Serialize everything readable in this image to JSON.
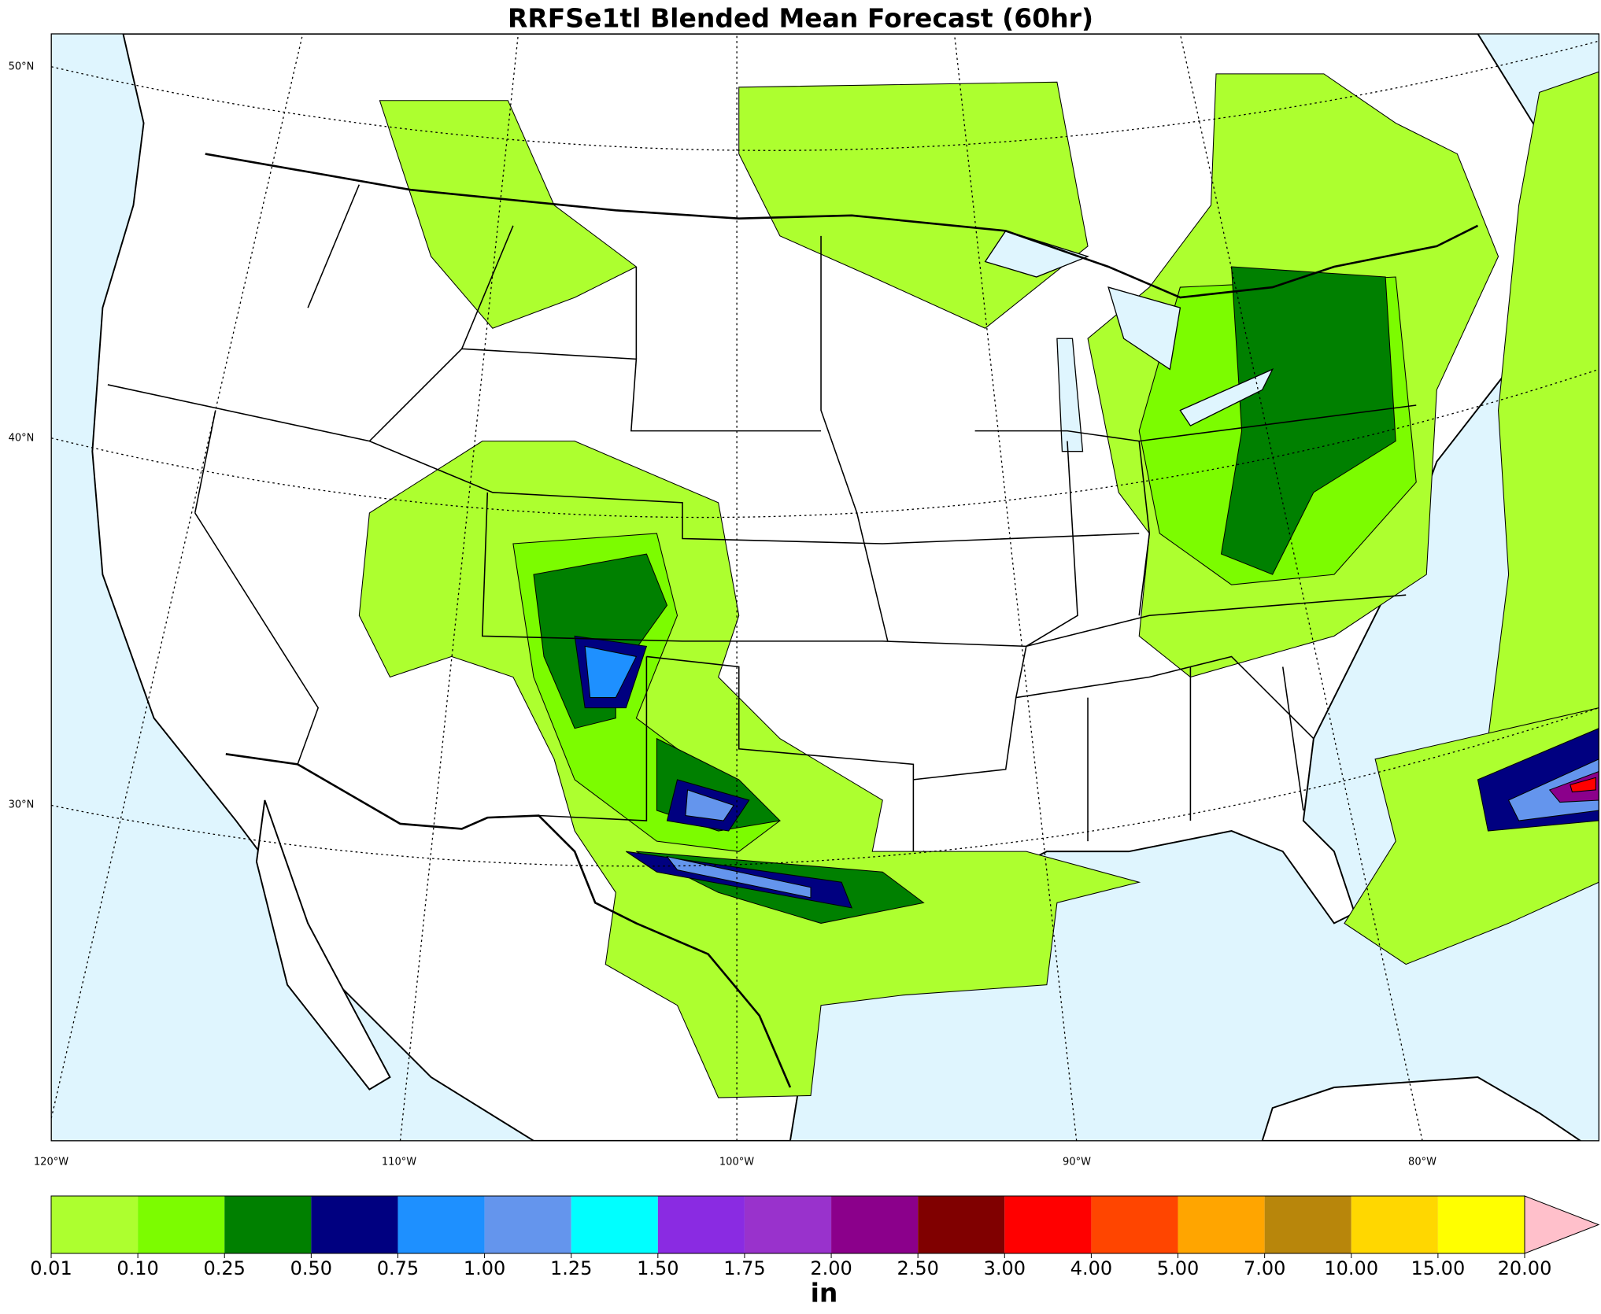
{
  "title": "RRFSe1tl Blended Mean Forecast (60hr)",
  "map": {
    "lat_labels": [
      "50°N",
      "40°N",
      "30°N"
    ],
    "lon_labels": [
      "120°W",
      "110°W",
      "100°W",
      "90°W",
      "80°W"
    ]
  },
  "colorbar": {
    "labels": [
      "0.01",
      "0.10",
      "0.25",
      "0.50",
      "0.75",
      "1.00",
      "1.25",
      "1.50",
      "1.75",
      "2.00",
      "2.50",
      "3.00",
      "4.00",
      "5.00",
      "7.00",
      "10.00",
      "15.00",
      "20.00"
    ],
    "colors": [
      "#adff2f",
      "#7cfc00",
      "#008000",
      "#000080",
      "#1e90ff",
      "#6495ed",
      "#00ffff",
      "#8a2be2",
      "#9932cc",
      "#8b008b",
      "#800000",
      "#ff0000",
      "#ff4500",
      "#ffa500",
      "#b8860b",
      "#ffd700",
      "#ffff00"
    ],
    "over_color": "#ffc0cb",
    "unit": "in"
  }
}
